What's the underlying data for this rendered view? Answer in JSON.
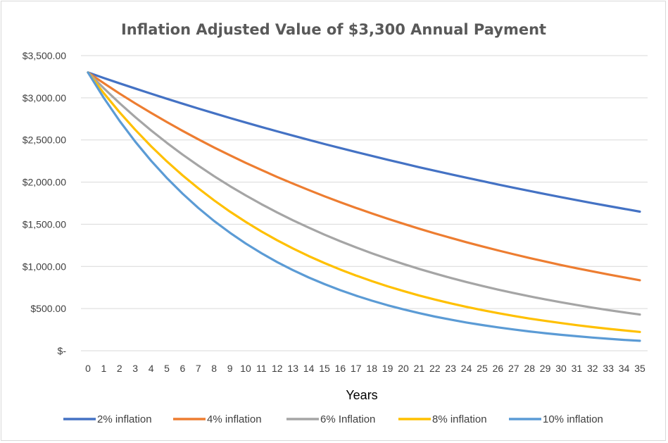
{
  "chart_data": {
    "type": "line",
    "title": "Inflation Adjusted Value of $3,300 Annual Payment",
    "xlabel": "Years",
    "ylabel": "",
    "x": [
      0,
      1,
      2,
      3,
      4,
      5,
      6,
      7,
      8,
      9,
      10,
      11,
      12,
      13,
      14,
      15,
      16,
      17,
      18,
      19,
      20,
      21,
      22,
      23,
      24,
      25,
      26,
      27,
      28,
      29,
      30,
      31,
      32,
      33,
      34,
      35
    ],
    "ylim": [
      0,
      3500
    ],
    "y_ticks": [
      0,
      500,
      1000,
      1500,
      2000,
      2500,
      3000,
      3500
    ],
    "y_tick_labels": [
      "$-",
      "$500.00",
      "$1,000.00",
      "$1,500.00",
      "$2,000.00",
      "$2,500.00",
      "$3,000.00",
      "$3,500.00"
    ],
    "grid": "horizontal",
    "legend_position": "bottom",
    "series": [
      {
        "name": "2% inflation",
        "color": "#4472c4",
        "values": [
          3300,
          3235,
          3172,
          3110,
          3049,
          2989,
          2930,
          2873,
          2817,
          2761,
          2707,
          2654,
          2602,
          2551,
          2501,
          2452,
          2404,
          2357,
          2311,
          2265,
          2221,
          2177,
          2135,
          2093,
          2052,
          2012,
          1972,
          1933,
          1895,
          1858,
          1822,
          1786,
          1751,
          1717,
          1683,
          1650
        ]
      },
      {
        "name": "4% inflation",
        "color": "#ed7d31",
        "values": [
          3300,
          3173,
          3051,
          2934,
          2821,
          2712,
          2608,
          2508,
          2411,
          2319,
          2229,
          2144,
          2061,
          1982,
          1906,
          1832,
          1762,
          1694,
          1629,
          1566,
          1506,
          1448,
          1392,
          1339,
          1287,
          1238,
          1190,
          1144,
          1100,
          1058,
          1017,
          978,
          941,
          905,
          870,
          836
        ]
      },
      {
        "name": "6% Inflation",
        "color": "#a5a5a5",
        "values": [
          3300,
          3113,
          2937,
          2771,
          2614,
          2466,
          2326,
          2195,
          2070,
          1953,
          1843,
          1738,
          1640,
          1547,
          1460,
          1377,
          1299,
          1226,
          1156,
          1091,
          1029,
          971,
          916,
          864,
          815,
          769,
          725,
          684,
          646,
          609,
          575,
          542,
          511,
          482,
          455,
          429
        ]
      },
      {
        "name": "8% inflation",
        "color": "#ffc000",
        "values": [
          3300,
          3056,
          2829,
          2620,
          2426,
          2246,
          2080,
          1926,
          1783,
          1651,
          1529,
          1415,
          1310,
          1213,
          1123,
          1040,
          963,
          892,
          826,
          764,
          708,
          655,
          607,
          562,
          520,
          482,
          446,
          413,
          382,
          354,
          328,
          303,
          281,
          260,
          241,
          223
        ]
      },
      {
        "name": "10% inflation",
        "color": "#5b9bd5",
        "values": [
          3300,
          3000,
          2727,
          2479,
          2254,
          2049,
          1863,
          1693,
          1539,
          1400,
          1272,
          1157,
          1051,
          956,
          869,
          790,
          718,
          653,
          594,
          540,
          491,
          446,
          405,
          369,
          335,
          305,
          277,
          252,
          229,
          208,
          189,
          172,
          156,
          142,
          129,
          118
        ]
      }
    ]
  }
}
